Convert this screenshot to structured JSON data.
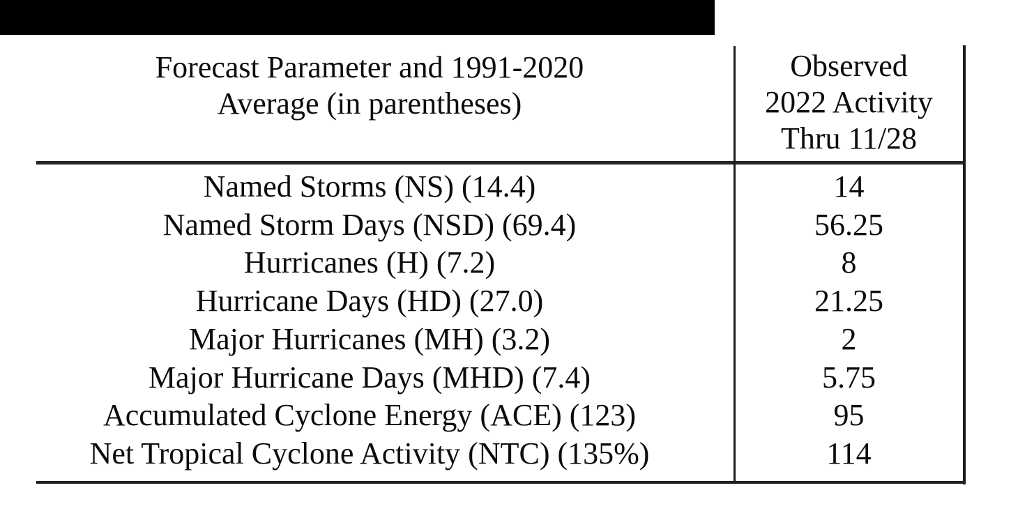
{
  "page": {
    "background_color": "#ffffff",
    "text_color": "#0c0c0c",
    "rule_color": "#1f1f1f",
    "black_bar_color": "#000000"
  },
  "table": {
    "header": {
      "parameter_line1": "Forecast Parameter and 1991-2020",
      "parameter_line2": "Average (in parentheses)",
      "observed_line1": "Observed",
      "observed_line2": "2022 Activity",
      "observed_line3": "Thru 11/28"
    },
    "rows": [
      {
        "parameter": "Named Storms (NS) (14.4)",
        "observed": "14"
      },
      {
        "parameter": "Named Storm Days (NSD) (69.4)",
        "observed": "56.25"
      },
      {
        "parameter": "Hurricanes (H) (7.2)",
        "observed": "8"
      },
      {
        "parameter": "Hurricane Days (HD) (27.0)",
        "observed": "21.25"
      },
      {
        "parameter": "Major Hurricanes (MH) (3.2)",
        "observed": "2"
      },
      {
        "parameter": "Major Hurricane Days (MHD) (7.4)",
        "observed": "5.75"
      },
      {
        "parameter": "Accumulated Cyclone Energy (ACE) (123)",
        "observed": "95"
      },
      {
        "parameter": "Net Tropical Cyclone Activity (NTC) (135%)",
        "observed": "114"
      }
    ]
  },
  "chart_data": {
    "type": "table",
    "columns": [
      "Forecast Parameter and 1991-2020 Average (in parentheses)",
      "Observed 2022 Activity Thru 11/28"
    ],
    "rows": [
      {
        "name": "Named Storms",
        "abbr": "NS",
        "average_1991_2020": 14.4,
        "observed_2022": 14
      },
      {
        "name": "Named Storm Days",
        "abbr": "NSD",
        "average_1991_2020": 69.4,
        "observed_2022": 56.25
      },
      {
        "name": "Hurricanes",
        "abbr": "H",
        "average_1991_2020": 7.2,
        "observed_2022": 8
      },
      {
        "name": "Hurricane Days",
        "abbr": "HD",
        "average_1991_2020": 27.0,
        "observed_2022": 21.25
      },
      {
        "name": "Major Hurricanes",
        "abbr": "MH",
        "average_1991_2020": 3.2,
        "observed_2022": 2
      },
      {
        "name": "Major Hurricane Days",
        "abbr": "MHD",
        "average_1991_2020": 7.4,
        "observed_2022": 5.75
      },
      {
        "name": "Accumulated Cyclone Energy",
        "abbr": "ACE",
        "average_1991_2020": 123,
        "observed_2022": 95
      },
      {
        "name": "Net Tropical Cyclone Activity",
        "abbr": "NTC",
        "average_1991_2020": "135%",
        "observed_2022": 114
      }
    ]
  }
}
